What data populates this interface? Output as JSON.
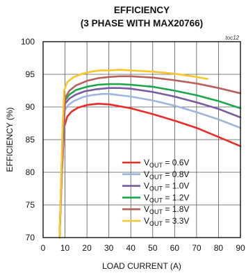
{
  "chart_data": {
    "type": "line",
    "title_line1": "EFFICIENCY",
    "title_line2": "(3 PHASE WITH MAX20766)",
    "code": "toc12",
    "xlabel": "LOAD CURRENT (A)",
    "ylabel": "EFFICIENCY (%)",
    "xlim": [
      0,
      90
    ],
    "ylim": [
      70,
      100
    ],
    "xticks": [
      0,
      10,
      20,
      30,
      40,
      50,
      60,
      70,
      80,
      90
    ],
    "yticks": [
      70,
      75,
      80,
      85,
      90,
      95,
      100
    ],
    "grid": true,
    "legend_position": "bottom-right",
    "series": [
      {
        "name": "V",
        "name_sub": "OUT",
        "name_rest": " = 0.6V",
        "color": "#ee2a24",
        "x": [
          7.5,
          8.6,
          9.7,
          11,
          13,
          16,
          20,
          25,
          30,
          40,
          50,
          60,
          70,
          80,
          90
        ],
        "y": [
          70,
          80,
          87,
          88.5,
          89.3,
          89.9,
          90.3,
          90.5,
          90.4,
          89.8,
          88.9,
          87.9,
          86.8,
          85.4,
          84
        ]
      },
      {
        "name": "V",
        "name_sub": "OUT",
        "name_rest": " = 0.8V",
        "color": "#9db6dc",
        "x": [
          7.5,
          8.7,
          9.9,
          11.5,
          14,
          18,
          22,
          27,
          30,
          40,
          50,
          60,
          70,
          80,
          90
        ],
        "y": [
          70,
          82,
          89.5,
          90.3,
          90.9,
          91.5,
          91.8,
          92,
          92,
          91.6,
          91,
          90.2,
          89.2,
          88.1,
          86.8
        ]
      },
      {
        "name": "V",
        "name_sub": "OUT",
        "name_rest": " = 1.0V",
        "color": "#7a5aa0",
        "x": [
          7.5,
          8.8,
          10,
          12,
          15,
          19,
          24,
          30,
          35,
          40,
          50,
          60,
          70,
          80,
          90
        ],
        "y": [
          70,
          84,
          90.5,
          91.3,
          91.9,
          92.4,
          92.7,
          92.9,
          92.9,
          92.8,
          92.3,
          91.6,
          90.7,
          89.7,
          88.4
        ]
      },
      {
        "name": "V",
        "name_sub": "OUT",
        "name_rest": " = 1.2V",
        "color": "#1aa84a",
        "x": [
          7.5,
          8.8,
          10,
          12,
          15,
          20,
          25,
          30,
          35,
          40,
          50,
          60,
          70,
          80,
          90
        ],
        "y": [
          70,
          85,
          91,
          91.9,
          92.6,
          93.1,
          93.4,
          93.5,
          93.5,
          93.4,
          93.1,
          92.5,
          91.8,
          90.9,
          89.8
        ]
      },
      {
        "name": "V",
        "name_sub": "OUT",
        "name_rest": " = 1.8V",
        "color": "#b9605a",
        "x": [
          7.5,
          8.9,
          10.2,
          12,
          15,
          20,
          25,
          30,
          35,
          40,
          50,
          60,
          70,
          80,
          90
        ],
        "y": [
          70,
          86,
          91.5,
          92.5,
          93.3,
          94,
          94.4,
          94.6,
          94.7,
          94.7,
          94.5,
          94.1,
          93.6,
          92.9,
          92.1
        ]
      },
      {
        "name": "V",
        "name_sub": "OUT",
        "name_rest": " = 3.3V",
        "color": "#fbc62a",
        "x": [
          7.5,
          8.8,
          9.6,
          11,
          14,
          18,
          22,
          26,
          30,
          35,
          40,
          50,
          60,
          70,
          75
        ],
        "y": [
          70,
          86,
          92.5,
          93.8,
          94.6,
          95.1,
          95.4,
          95.6,
          95.6,
          95.7,
          95.6,
          95.4,
          95.1,
          94.6,
          94.3
        ]
      }
    ]
  }
}
